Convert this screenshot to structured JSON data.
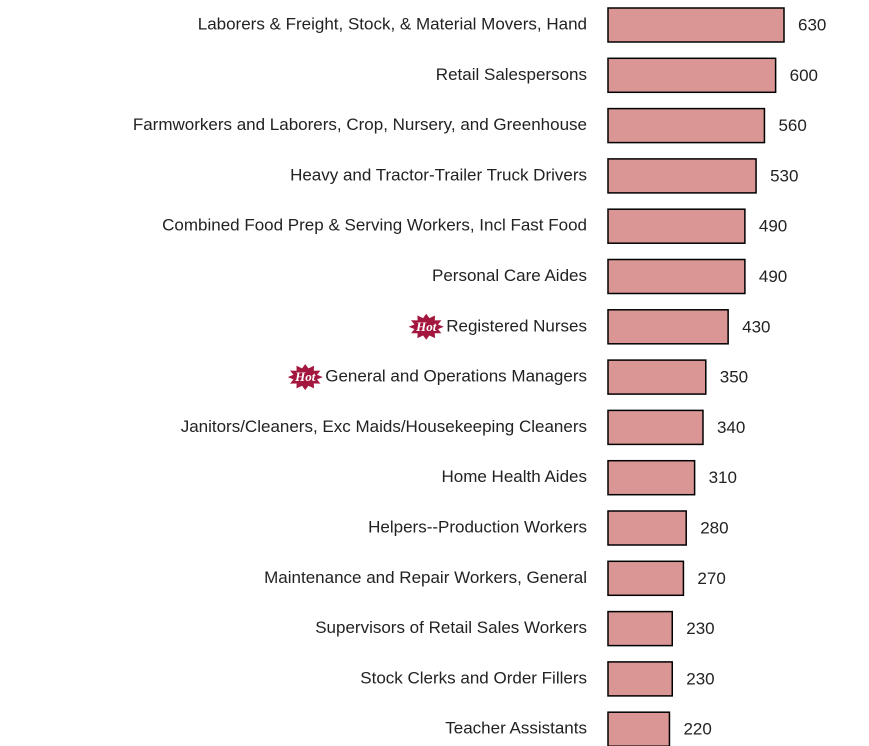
{
  "chart_data": {
    "type": "bar",
    "orientation": "horizontal",
    "categories": [
      "Laborers & Freight, Stock, & Material Movers, Hand",
      "Retail Salespersons",
      "Farmworkers and Laborers, Crop, Nursery, and Greenhouse",
      "Heavy and Tractor-Trailer Truck Drivers",
      "Combined Food Prep & Serving Workers, Incl Fast Food",
      "Personal Care Aides",
      "Registered Nurses",
      "General and Operations Managers",
      "Janitors/Cleaners, Exc Maids/Housekeeping Cleaners",
      "Home Health Aides",
      "Helpers--Production Workers",
      "Maintenance and Repair Workers, General",
      "Supervisors of Retail Sales Workers",
      "Stock Clerks and Order Fillers",
      "Teacher Assistants"
    ],
    "values": [
      630,
      600,
      560,
      530,
      490,
      490,
      430,
      350,
      340,
      310,
      280,
      270,
      230,
      230,
      220
    ],
    "badges": [
      null,
      null,
      null,
      null,
      null,
      null,
      "Hot",
      "Hot",
      null,
      null,
      null,
      null,
      null,
      null,
      null
    ],
    "color": "#d99694",
    "badge_color": "#a3173f"
  }
}
